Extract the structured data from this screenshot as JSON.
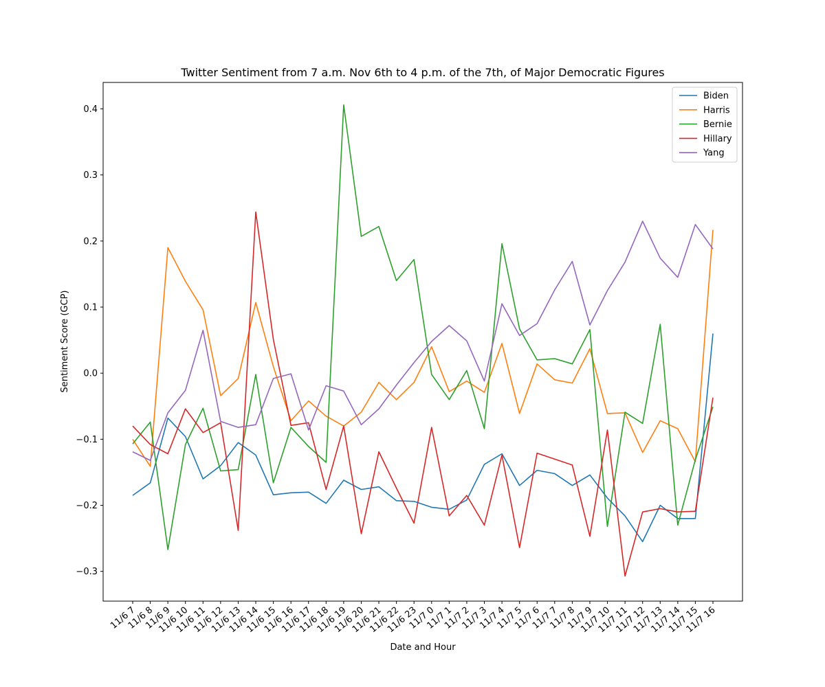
{
  "chart_data": {
    "type": "line",
    "title": "Twitter Sentiment from 7 a.m. Nov 6th to 4 p.m. of the 7th, of Major Democratic Figures",
    "xlabel": "Date and Hour",
    "ylabel": "Sentiment Score (GCP)",
    "ylim": [
      -0.345,
      0.44
    ],
    "yticks": [
      -0.3,
      -0.2,
      -0.1,
      0.0,
      0.1,
      0.2,
      0.3,
      0.4
    ],
    "ytick_labels": [
      "−0.3",
      "−0.2",
      "−0.1",
      "0.0",
      "0.1",
      "0.2",
      "0.3",
      "0.4"
    ],
    "grid": false,
    "legend_position": "top-right",
    "categories": [
      "11/6 7",
      "11/6 8",
      "11/6 9",
      "11/6 10",
      "11/6 11",
      "11/6 12",
      "11/6 13",
      "11/6 14",
      "11/6 15",
      "11/6 16",
      "11/6 17",
      "11/6 18",
      "11/6 19",
      "11/6 20",
      "11/6 21",
      "11/6 22",
      "11/6 23",
      "11/7 0",
      "11/7 1",
      "11/7 2",
      "11/7 3",
      "11/7 4",
      "11/7 5",
      "11/7 6",
      "11/7 7",
      "11/7 8",
      "11/7 9",
      "11/7 10",
      "11/7 11",
      "11/7 12",
      "11/7 13",
      "11/7 14",
      "11/7 15",
      "11/7 16"
    ],
    "series": [
      {
        "name": "Biden",
        "color": "#1f77b4",
        "values": [
          -0.185,
          -0.166,
          -0.068,
          -0.096,
          -0.16,
          -0.14,
          -0.105,
          -0.124,
          -0.184,
          -0.181,
          -0.18,
          -0.197,
          -0.162,
          -0.176,
          -0.172,
          -0.193,
          -0.194,
          -0.203,
          -0.206,
          -0.192,
          -0.138,
          -0.122,
          -0.17,
          -0.147,
          -0.152,
          -0.17,
          -0.154,
          -0.189,
          -0.216,
          -0.255,
          -0.2,
          -0.22,
          -0.22,
          0.06
        ]
      },
      {
        "name": "Harris",
        "color": "#ff7f0e",
        "values": [
          -0.1,
          -0.141,
          0.19,
          0.139,
          0.096,
          -0.034,
          -0.008,
          0.107,
          0.01,
          -0.072,
          -0.042,
          -0.065,
          -0.08,
          -0.059,
          -0.014,
          -0.04,
          -0.014,
          0.04,
          -0.028,
          -0.012,
          -0.029,
          0.045,
          -0.061,
          0.014,
          -0.01,
          -0.015,
          0.037,
          -0.061,
          -0.06,
          -0.12,
          -0.072,
          -0.084,
          -0.134,
          0.217
        ]
      },
      {
        "name": "Bernie",
        "color": "#2ca02c",
        "values": [
          -0.107,
          -0.074,
          -0.267,
          -0.108,
          -0.053,
          -0.148,
          -0.146,
          -0.002,
          -0.166,
          -0.082,
          -0.111,
          -0.135,
          0.406,
          0.207,
          0.222,
          0.14,
          0.172,
          -0.002,
          -0.04,
          0.004,
          -0.084,
          0.196,
          0.067,
          0.02,
          0.022,
          0.014,
          0.066,
          -0.232,
          -0.059,
          -0.076,
          0.074,
          -0.23,
          -0.131,
          -0.051
        ]
      },
      {
        "name": "Hillary",
        "color": "#d62728",
        "values": [
          -0.08,
          -0.108,
          -0.122,
          -0.054,
          -0.09,
          -0.075,
          -0.238,
          0.244,
          0.051,
          -0.079,
          -0.075,
          -0.176,
          -0.08,
          -0.243,
          -0.119,
          -0.174,
          -0.227,
          -0.082,
          -0.216,
          -0.185,
          -0.23,
          -0.124,
          -0.264,
          -0.121,
          -0.13,
          -0.139,
          -0.247,
          -0.086,
          -0.307,
          -0.21,
          -0.205,
          -0.21,
          -0.209,
          -0.037
        ]
      },
      {
        "name": "Yang",
        "color": "#9467bd",
        "values": [
          -0.119,
          -0.132,
          -0.06,
          -0.026,
          0.065,
          -0.073,
          -0.082,
          -0.078,
          -0.008,
          -0.001,
          -0.086,
          -0.019,
          -0.027,
          -0.078,
          -0.054,
          -0.018,
          0.016,
          0.048,
          0.072,
          0.049,
          -0.012,
          0.105,
          0.057,
          0.075,
          0.126,
          0.169,
          0.073,
          0.125,
          0.168,
          0.23,
          0.174,
          0.145,
          0.225,
          0.188
        ]
      }
    ]
  }
}
